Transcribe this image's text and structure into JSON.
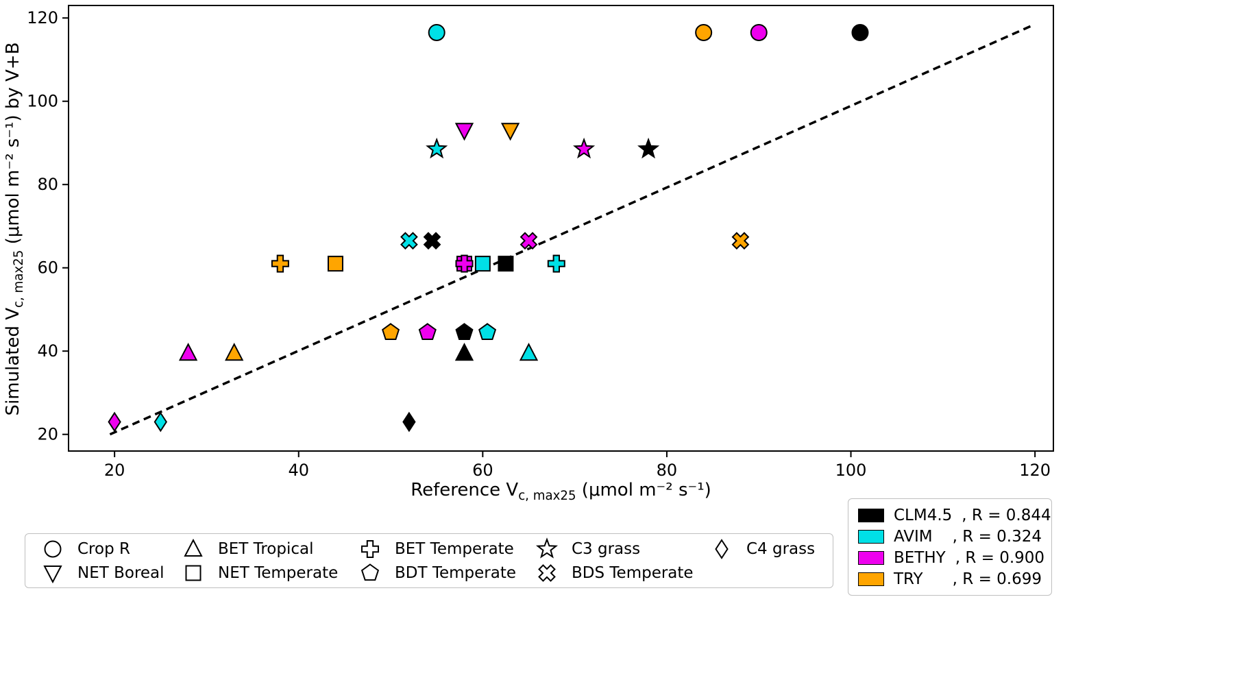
{
  "figure": {
    "background": "#ffffff"
  },
  "axis": {
    "xlabel": {
      "main": "Reference V",
      "sub": "c, max25",
      "units": " (μmol m⁻² s⁻¹)"
    },
    "ylabel": {
      "main": "Simulated V",
      "sub": "c, max25",
      "units": " (μmol m⁻² s⁻¹) by V+B"
    }
  },
  "chart_data": {
    "type": "scatter",
    "title": "",
    "xlabel": "Reference Vc,max25 (μmol m⁻² s⁻¹)",
    "ylabel": "Simulated Vc,max25 (μmol m⁻² s⁻¹) by V+B",
    "xlim": [
      15,
      122
    ],
    "ylim": [
      16,
      123
    ],
    "xticks": [
      20,
      40,
      60,
      80,
      100,
      120
    ],
    "yticks": [
      20,
      40,
      60,
      80,
      100,
      120
    ],
    "grid": false,
    "legend_position": "bottom",
    "identity_line": {
      "x1": 19.5,
      "y1": 20,
      "x2": 119.5,
      "y2": 118,
      "style": "dashed",
      "color": "#000000"
    },
    "datasets": [
      {
        "name": "CLM4.5",
        "r_label": "R = 0.844",
        "color": "#000000"
      },
      {
        "name": "AVIM",
        "r_label": "R = 0.324",
        "color": "#00e0e6"
      },
      {
        "name": "BETHY",
        "r_label": "R = 0.900",
        "color": "#ee00ee"
      },
      {
        "name": "TRY",
        "r_label": "R = 0.699",
        "color": "#ffa500"
      }
    ],
    "pft_markers": [
      {
        "name": "Crop R",
        "marker": "circle"
      },
      {
        "name": "NET Boreal",
        "marker": "triangle-down"
      },
      {
        "name": "BET Tropical",
        "marker": "triangle-up"
      },
      {
        "name": "NET Temperate",
        "marker": "square"
      },
      {
        "name": "BET Temperate",
        "marker": "plus"
      },
      {
        "name": "BDT Temperate",
        "marker": "pentagon"
      },
      {
        "name": "C3 grass",
        "marker": "star"
      },
      {
        "name": "BDS Temperate",
        "marker": "x"
      },
      {
        "name": "C4 grass",
        "marker": "diamond"
      }
    ],
    "points": [
      {
        "pft": "C4 grass",
        "dataset": "BETHY",
        "x": 20,
        "y": 23
      },
      {
        "pft": "C4 grass",
        "dataset": "AVIM",
        "x": 25,
        "y": 23
      },
      {
        "pft": "C4 grass",
        "dataset": "CLM4.5",
        "x": 52,
        "y": 23
      },
      {
        "pft": "BET Tropical",
        "dataset": "BETHY",
        "x": 28,
        "y": 39.5
      },
      {
        "pft": "BET Tropical",
        "dataset": "TRY",
        "x": 33,
        "y": 39.5
      },
      {
        "pft": "BET Tropical",
        "dataset": "CLM4.5",
        "x": 58,
        "y": 39.5
      },
      {
        "pft": "BET Tropical",
        "dataset": "AVIM",
        "x": 65,
        "y": 39.5
      },
      {
        "pft": "BDT Temperate",
        "dataset": "TRY",
        "x": 50,
        "y": 44.5
      },
      {
        "pft": "BDT Temperate",
        "dataset": "BETHY",
        "x": 54,
        "y": 44.5
      },
      {
        "pft": "BDT Temperate",
        "dataset": "CLM4.5",
        "x": 58,
        "y": 44.5
      },
      {
        "pft": "BDT Temperate",
        "dataset": "AVIM",
        "x": 60.5,
        "y": 44.5
      },
      {
        "pft": "NET Temperate",
        "dataset": "TRY",
        "x": 44,
        "y": 61
      },
      {
        "pft": "NET Temperate",
        "dataset": "BETHY",
        "x": 58,
        "y": 61
      },
      {
        "pft": "NET Temperate",
        "dataset": "AVIM",
        "x": 60,
        "y": 61
      },
      {
        "pft": "NET Temperate",
        "dataset": "CLM4.5",
        "x": 62.5,
        "y": 61
      },
      {
        "pft": "BET Temperate",
        "dataset": "TRY",
        "x": 38,
        "y": 61
      },
      {
        "pft": "BET Temperate",
        "dataset": "BETHY",
        "x": 58,
        "y": 61
      },
      {
        "pft": "BET Temperate",
        "dataset": "AVIM",
        "x": 68,
        "y": 61
      },
      {
        "pft": "BDS Temperate",
        "dataset": "AVIM",
        "x": 52,
        "y": 66.5
      },
      {
        "pft": "BDS Temperate",
        "dataset": "CLM4.5",
        "x": 54.5,
        "y": 66.5
      },
      {
        "pft": "BDS Temperate",
        "dataset": "BETHY",
        "x": 65,
        "y": 66.5
      },
      {
        "pft": "BDS Temperate",
        "dataset": "TRY",
        "x": 88,
        "y": 66.5
      },
      {
        "pft": "C3 grass",
        "dataset": "AVIM",
        "x": 55,
        "y": 88.5
      },
      {
        "pft": "C3 grass",
        "dataset": "BETHY",
        "x": 71,
        "y": 88.5
      },
      {
        "pft": "C3 grass",
        "dataset": "CLM4.5",
        "x": 78,
        "y": 88.5
      },
      {
        "pft": "NET Boreal",
        "dataset": "BETHY",
        "x": 58,
        "y": 93
      },
      {
        "pft": "NET Boreal",
        "dataset": "TRY",
        "x": 63,
        "y": 93
      },
      {
        "pft": "Crop R",
        "dataset": "AVIM",
        "x": 55,
        "y": 116.5
      },
      {
        "pft": "Crop R",
        "dataset": "TRY",
        "x": 84,
        "y": 116.5
      },
      {
        "pft": "Crop R",
        "dataset": "BETHY",
        "x": 90,
        "y": 116.5
      },
      {
        "pft": "Crop R",
        "dataset": "CLM4.5",
        "x": 101,
        "y": 116.5
      }
    ]
  }
}
